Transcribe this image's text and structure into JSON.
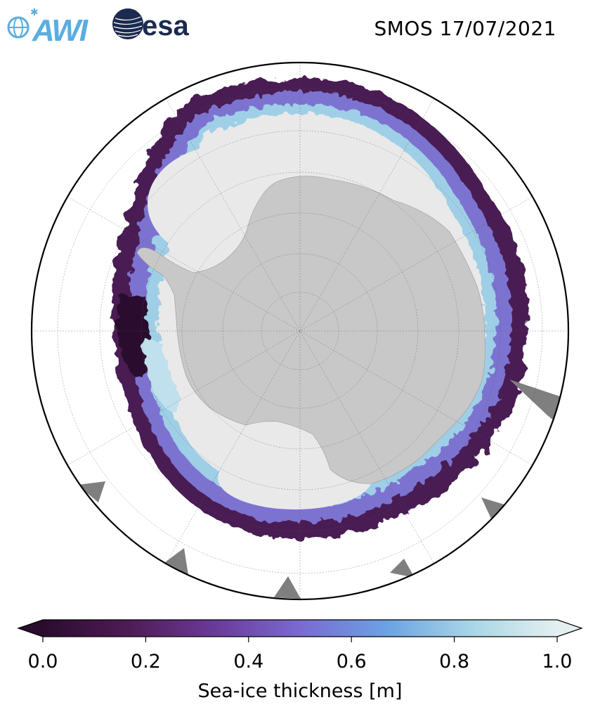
{
  "header": {
    "title": "SMOS 17/07/2021",
    "logos": [
      {
        "name": "awi-logo",
        "text": "AWI",
        "color": "#5aaee0"
      },
      {
        "name": "esa-logo",
        "text": "esa",
        "color": "#1b2a4e"
      }
    ]
  },
  "map": {
    "projection": "south-polar-stereographic",
    "colors": {
      "land": "#c8c8c8",
      "thick_ice": "#e9e9e9",
      "ocean": "#ffffff",
      "no_data": "#7f7f7f",
      "boundary": "#000000"
    }
  },
  "colorbar": {
    "label": "Sea-ice thickness [m]",
    "ticks": [
      "0.0",
      "0.2",
      "0.4",
      "0.6",
      "0.8",
      "1.0"
    ],
    "tick_values": [
      0.0,
      0.2,
      0.4,
      0.6,
      0.8,
      1.0
    ],
    "vmin": 0.0,
    "vmax": 1.0,
    "extend": "both",
    "colormap": [
      "#2a0c2e",
      "#4f1b55",
      "#6a3a9a",
      "#7a6ad0",
      "#6aa2e3",
      "#a8d6e6",
      "#e4eff0"
    ]
  }
}
